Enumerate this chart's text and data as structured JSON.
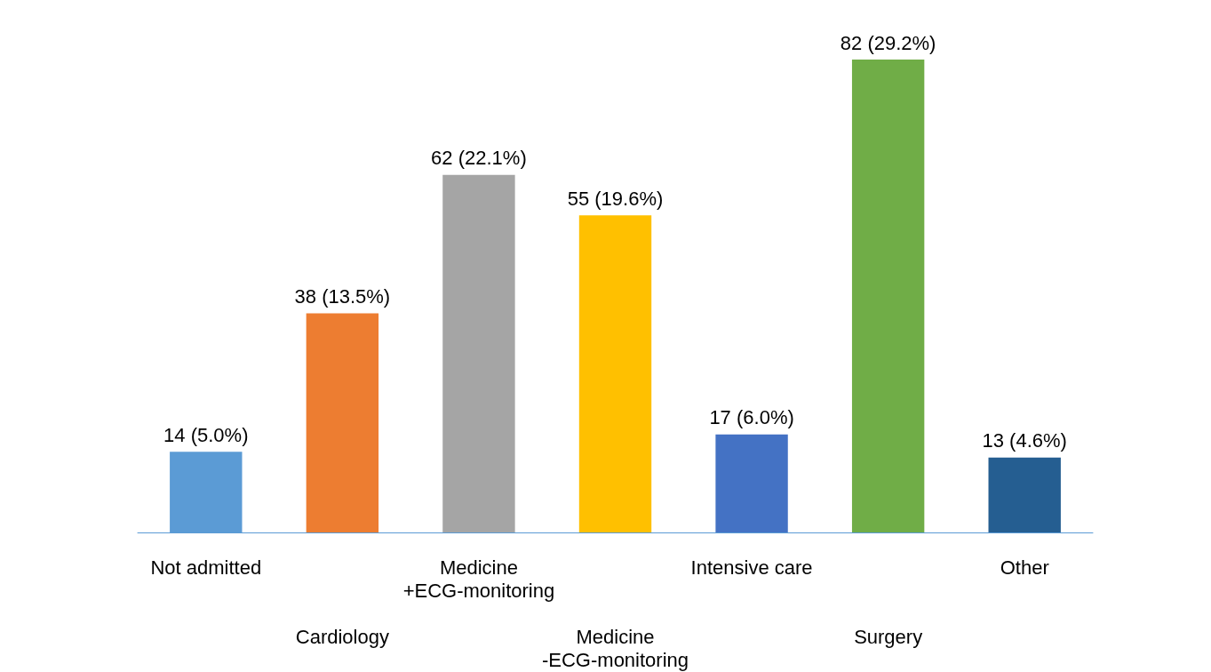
{
  "chart_data": {
    "type": "bar",
    "categories": [
      "Not admitted",
      "Cardiology",
      "Medicine\n+ECG-monitoring",
      "Medicine\n-ECG-monitoring",
      "Intensive care",
      "Surgery",
      "Other"
    ],
    "values": [
      14,
      38,
      62,
      55,
      17,
      82,
      13
    ],
    "value_labels": [
      "14 (5.0%)",
      "38 (13.5%)",
      "62 (22.1%)",
      "55 (19.6%)",
      "17 (6.0%)",
      "82 (29.2%)",
      "13 (4.6%)"
    ],
    "colors": [
      "#5b9bd5",
      "#ed7d31",
      "#a5a5a5",
      "#ffc000",
      "#4472c4",
      "#70ad47",
      "#255e91"
    ]
  }
}
